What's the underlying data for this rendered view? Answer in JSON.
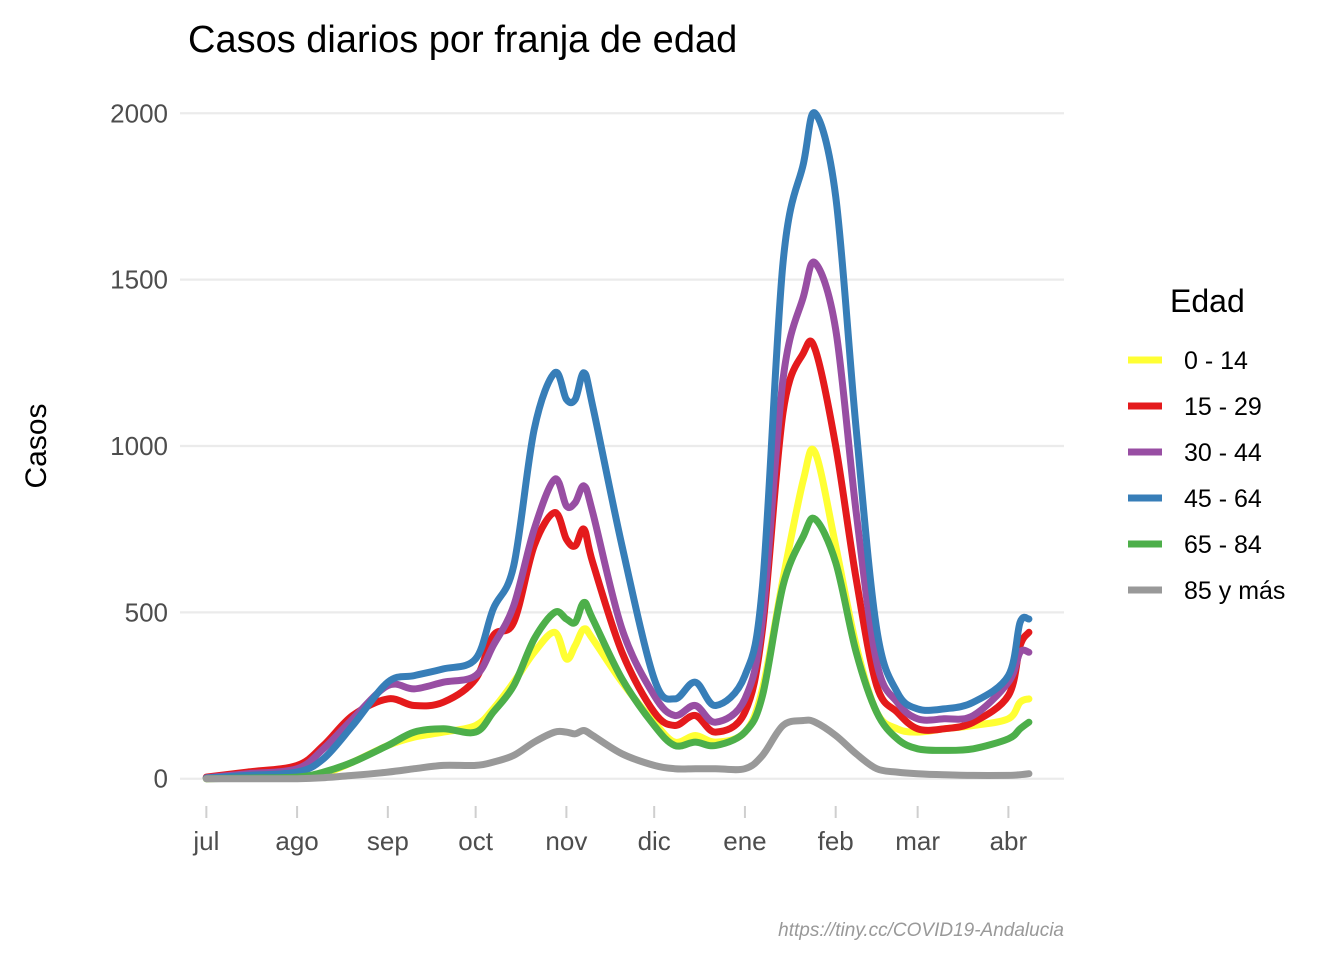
{
  "chart_data": {
    "type": "line",
    "title": "Casos diarios por franja de edad",
    "xlabel": "",
    "ylabel": "Casos",
    "caption": "https://tiny.cc/COVID19-Andalucia",
    "legend_title": "Edad",
    "legend_position": "right",
    "grid": true,
    "y_ticks": [
      0,
      500,
      1000,
      1500,
      2000
    ],
    "x_ticks": [
      "jul",
      "ago",
      "sep",
      "oct",
      "nov",
      "dic",
      "ene",
      "feb",
      "mar",
      "abr"
    ],
    "xlim": [
      "2020-06-22",
      "2021-04-20"
    ],
    "ylim": [
      -100,
      2100
    ],
    "x": [
      "2020-07-01",
      "2020-07-15",
      "2020-08-01",
      "2020-08-10",
      "2020-08-20",
      "2020-09-01",
      "2020-09-10",
      "2020-09-20",
      "2020-10-01",
      "2020-10-07",
      "2020-10-14",
      "2020-10-21",
      "2020-10-28",
      "2020-11-01",
      "2020-11-04",
      "2020-11-07",
      "2020-11-10",
      "2020-11-20",
      "2020-12-01",
      "2020-12-08",
      "2020-12-15",
      "2020-12-22",
      "2021-01-01",
      "2021-01-07",
      "2021-01-14",
      "2021-01-21",
      "2021-01-25",
      "2021-02-01",
      "2021-02-08",
      "2021-02-15",
      "2021-02-22",
      "2021-03-01",
      "2021-03-10",
      "2021-03-20",
      "2021-04-01",
      "2021-04-05",
      "2021-04-08"
    ],
    "series": [
      {
        "name": "0 - 14",
        "color": "#ffff33",
        "values": [
          0,
          3,
          5,
          15,
          50,
          100,
          125,
          140,
          160,
          210,
          290,
          380,
          440,
          360,
          400,
          450,
          420,
          290,
          170,
          110,
          130,
          110,
          140,
          270,
          600,
          900,
          980,
          700,
          400,
          200,
          150,
          140,
          150,
          160,
          180,
          230,
          240
        ]
      },
      {
        "name": "15 - 29",
        "color": "#e41a1c",
        "values": [
          5,
          20,
          40,
          100,
          190,
          240,
          220,
          230,
          300,
          430,
          470,
          700,
          800,
          720,
          700,
          750,
          650,
          380,
          200,
          160,
          190,
          140,
          200,
          450,
          1100,
          1280,
          1290,
          1000,
          600,
          280,
          200,
          150,
          150,
          170,
          250,
          400,
          440
        ]
      },
      {
        "name": "30 - 44",
        "color": "#984ea3",
        "values": [
          3,
          15,
          30,
          90,
          180,
          280,
          270,
          290,
          310,
          400,
          520,
          750,
          900,
          820,
          830,
          880,
          800,
          450,
          250,
          190,
          220,
          170,
          240,
          480,
          1200,
          1450,
          1550,
          1350,
          800,
          350,
          230,
          180,
          180,
          190,
          290,
          380,
          380
        ]
      },
      {
        "name": "45 - 64",
        "color": "#377eb8",
        "values": [
          2,
          10,
          20,
          60,
          160,
          290,
          310,
          330,
          360,
          510,
          640,
          1050,
          1220,
          1140,
          1140,
          1220,
          1120,
          700,
          300,
          240,
          290,
          220,
          310,
          580,
          1550,
          1850,
          2000,
          1750,
          1050,
          450,
          260,
          210,
          210,
          230,
          310,
          470,
          480
        ]
      },
      {
        "name": "65 - 84",
        "color": "#4daf4a",
        "values": [
          0,
          2,
          5,
          20,
          50,
          100,
          140,
          150,
          140,
          200,
          280,
          420,
          500,
          480,
          470,
          530,
          480,
          300,
          160,
          100,
          110,
          100,
          140,
          250,
          580,
          730,
          780,
          650,
          380,
          200,
          120,
          90,
          85,
          90,
          120,
          150,
          170
        ]
      },
      {
        "name": "85 y más",
        "color": "#999999",
        "values": [
          0,
          0,
          0,
          3,
          10,
          20,
          30,
          40,
          40,
          50,
          70,
          110,
          140,
          140,
          135,
          145,
          130,
          75,
          40,
          30,
          30,
          30,
          30,
          70,
          160,
          175,
          170,
          130,
          75,
          30,
          20,
          15,
          12,
          10,
          10,
          12,
          15
        ]
      }
    ]
  }
}
